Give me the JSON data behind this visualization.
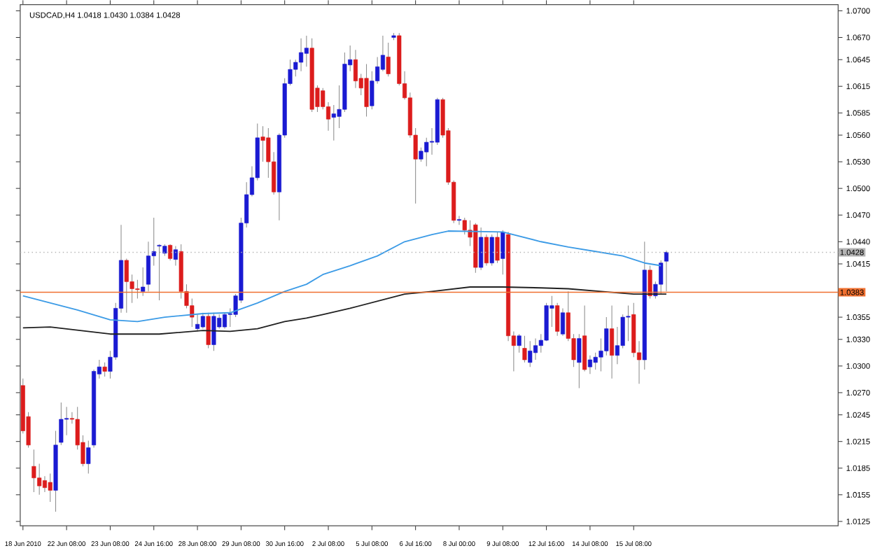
{
  "chart_data": {
    "type": "candlestick",
    "title": "USDCAD,H4 1.0418 1.0430 1.0384 1.0428",
    "categories": [
      "18 Jun 2010",
      null,
      null,
      null,
      null,
      null,
      null,
      null,
      "22 Jun 08:00",
      null,
      null,
      null,
      null,
      null,
      null,
      null,
      "23 Jun 08:00",
      null,
      null,
      null,
      null,
      null,
      null,
      null,
      "24 Jun 16:00",
      null,
      null,
      null,
      null,
      null,
      null,
      null,
      "28 Jun 08:00",
      null,
      null,
      null,
      null,
      null,
      null,
      null,
      "29 Jun 08:00",
      null,
      null,
      null,
      null,
      null,
      null,
      null,
      "30 Jun 16:00",
      null,
      null,
      null,
      null,
      null,
      null,
      null,
      "2 Jul 08:00",
      null,
      null,
      null,
      null,
      null,
      null,
      null,
      "5 Jul 08:00",
      null,
      null,
      null,
      null,
      null,
      null,
      null,
      "6 Jul 16:00",
      null,
      null,
      null,
      null,
      null,
      null,
      null,
      "8 Jul 00:00",
      null,
      null,
      null,
      null,
      null,
      null,
      null,
      "9 Jul 08:00",
      null,
      null,
      null,
      null,
      null,
      null,
      null,
      "12 Jul 16:00",
      null,
      null,
      null,
      null,
      null,
      null,
      null,
      "14 Jul 08:00",
      null,
      null,
      null,
      null,
      null,
      null,
      null,
      "15 Jul 08:00",
      null,
      null,
      null,
      null,
      null,
      null,
      null,
      null,
      null,
      null,
      null,
      null,
      null,
      null,
      null,
      null,
      null,
      null,
      null,
      null,
      null,
      null,
      null,
      null,
      null,
      null,
      null,
      null,
      null,
      null,
      null,
      null,
      null,
      null,
      null,
      null,
      null
    ],
    "ohlc": [
      [
        1.0278,
        1.0286,
        1.0224,
        1.0227
      ],
      [
        1.0243,
        1.0248,
        1.0208,
        1.0211
      ],
      [
        1.0187,
        1.0206,
        1.0158,
        1.0174
      ],
      [
        1.0174,
        1.019,
        1.0155,
        1.0165
      ],
      [
        1.0171,
        1.0176,
        1.0158,
        1.0163
      ],
      [
        1.0169,
        1.0179,
        1.0147,
        1.016
      ],
      [
        1.016,
        1.0227,
        1.0136,
        1.0211
      ],
      [
        1.0214,
        1.0259,
        1.0211,
        1.024
      ],
      [
        1.024,
        1.0254,
        1.0222,
        1.0241
      ],
      [
        1.0241,
        1.0248,
        1.0235,
        1.024
      ],
      [
        1.024,
        1.0254,
        1.0206,
        1.0211
      ],
      [
        1.0214,
        1.0222,
        1.0187,
        1.019
      ],
      [
        1.019,
        1.0216,
        1.0179,
        1.0208
      ],
      [
        1.0211,
        1.0296,
        1.0208,
        1.0294
      ],
      [
        1.0291,
        1.0307,
        1.0286,
        1.0299
      ],
      [
        1.0299,
        1.0304,
        1.0288,
        1.0294
      ],
      [
        1.0294,
        1.0317,
        1.0286,
        1.031
      ],
      [
        1.031,
        1.0371,
        1.0307,
        1.0365
      ],
      [
        1.0365,
        1.0459,
        1.036,
        1.0419
      ],
      [
        1.0419,
        1.0421,
        1.036,
        1.0395
      ],
      [
        1.0395,
        1.0403,
        1.0371,
        1.0387
      ],
      [
        1.0387,
        1.0397,
        1.0376,
        1.0386
      ],
      [
        1.0384,
        1.0411,
        1.0379,
        1.0389
      ],
      [
        1.0392,
        1.044,
        1.0384,
        1.0424
      ],
      [
        1.0424,
        1.0467,
        1.0413,
        1.0429
      ],
      [
        1.0435,
        1.0437,
        1.0374,
        1.0436
      ],
      [
        1.0427,
        1.0437,
        1.0424,
        1.0435
      ],
      [
        1.0436,
        1.0437,
        1.0419,
        1.0421
      ],
      [
        1.042,
        1.0435,
        1.0413,
        1.0431
      ],
      [
        1.0429,
        1.0437,
        1.0376,
        1.0384
      ],
      [
        1.0384,
        1.0392,
        1.0365,
        1.0368
      ],
      [
        1.0368,
        1.0376,
        1.0344,
        1.0355
      ],
      [
        1.0342,
        1.0358,
        1.0339,
        1.0347
      ],
      [
        1.0344,
        1.036,
        1.0342,
        1.0356
      ],
      [
        1.0356,
        1.036,
        1.032,
        1.0324
      ],
      [
        1.0324,
        1.036,
        1.0317,
        1.0356
      ],
      [
        1.0344,
        1.0358,
        1.0342,
        1.0354
      ],
      [
        1.0344,
        1.036,
        1.0342,
        1.0358
      ],
      [
        1.0358,
        1.0365,
        1.0344,
        1.0359
      ],
      [
        1.0358,
        1.0381,
        1.0355,
        1.0379
      ],
      [
        1.0374,
        1.0467,
        1.0371,
        1.0461
      ],
      [
        1.0461,
        1.0507,
        1.0456,
        1.0493
      ],
      [
        1.0493,
        1.0525,
        1.0491,
        1.0512
      ],
      [
        1.0512,
        1.0573,
        1.0509,
        1.0557
      ],
      [
        1.0558,
        1.057,
        1.053,
        1.0554
      ],
      [
        1.0557,
        1.0568,
        1.0512,
        1.053
      ],
      [
        1.053,
        1.0541,
        1.0493,
        1.0496
      ],
      [
        1.0496,
        1.0562,
        1.0464,
        1.056
      ],
      [
        1.056,
        1.0624,
        1.0557,
        1.0618
      ],
      [
        1.0618,
        1.0645,
        1.0616,
        1.0634
      ],
      [
        1.0634,
        1.0645,
        1.0626,
        1.0642
      ],
      [
        1.0642,
        1.0669,
        1.0632,
        1.0653
      ],
      [
        1.0652,
        1.0672,
        1.0637,
        1.0658
      ],
      [
        1.0658,
        1.0669,
        1.0586,
        1.0589
      ],
      [
        1.0613,
        1.0616,
        1.0586,
        1.0592
      ],
      [
        1.061,
        1.0613,
        1.0589,
        1.0592
      ],
      [
        1.0592,
        1.0597,
        1.0565,
        1.0578
      ],
      [
        1.058,
        1.0594,
        1.0554,
        1.0584
      ],
      [
        1.0581,
        1.0616,
        1.0568,
        1.0589
      ],
      [
        1.0589,
        1.0653,
        1.0586,
        1.064
      ],
      [
        1.0639,
        1.0661,
        1.0632,
        1.0645
      ],
      [
        1.0645,
        1.0656,
        1.0613,
        1.0621
      ],
      [
        1.0624,
        1.0629,
        1.0605,
        1.0613
      ],
      [
        1.0624,
        1.064,
        1.0581,
        1.0592
      ],
      [
        1.0593,
        1.0632,
        1.0589,
        1.0621
      ],
      [
        1.0621,
        1.0648,
        1.0618,
        1.0637
      ],
      [
        1.0634,
        1.0672,
        1.0632,
        1.065
      ],
      [
        1.0648,
        1.0664,
        1.0626,
        1.0629
      ],
      [
        1.067,
        1.0675,
        1.0667,
        1.0672
      ],
      [
        1.0672,
        1.0675,
        1.0616,
        1.0618
      ],
      [
        1.0618,
        1.0632,
        1.06,
        1.0602
      ],
      [
        1.0602,
        1.0608,
        1.0557,
        1.056
      ],
      [
        1.056,
        1.0568,
        1.0483,
        1.0533
      ],
      [
        1.0533,
        1.0546,
        1.053,
        1.0542
      ],
      [
        1.0541,
        1.0557,
        1.0525,
        1.0552
      ],
      [
        1.0552,
        1.0568,
        1.0538,
        1.0553
      ],
      [
        1.0552,
        1.0602,
        1.0549,
        1.06
      ],
      [
        1.06,
        1.0602,
        1.0557,
        1.056
      ],
      [
        1.0565,
        1.0568,
        1.0504,
        1.0507
      ],
      [
        1.0507,
        1.0509,
        1.0461,
        1.0464
      ],
      [
        1.0464,
        1.0469,
        1.0459,
        1.0465
      ],
      [
        1.0464,
        1.0467,
        1.0448,
        1.0453
      ],
      [
        1.0453,
        1.0464,
        1.0435,
        1.0445
      ],
      [
        1.0459,
        1.0461,
        1.0405,
        1.0411
      ],
      [
        1.0411,
        1.0456,
        1.0408,
        1.0445
      ],
      [
        1.0445,
        1.0448,
        1.0413,
        1.0416
      ],
      [
        1.0416,
        1.0448,
        1.0413,
        1.0445
      ],
      [
        1.0445,
        1.0451,
        1.0416,
        1.0419
      ],
      [
        1.0421,
        1.0453,
        1.0403,
        1.0451
      ],
      [
        1.0448,
        1.0451,
        1.0328,
        1.0334
      ],
      [
        1.0334,
        1.0339,
        1.0294,
        1.0323
      ],
      [
        1.0323,
        1.0336,
        1.0315,
        1.0334
      ],
      [
        1.032,
        1.0334,
        1.0304,
        1.0307
      ],
      [
        1.0304,
        1.0328,
        1.0299,
        1.0317
      ],
      [
        1.0315,
        1.0331,
        1.0307,
        1.0323
      ],
      [
        1.0323,
        1.0336,
        1.0315,
        1.0329
      ],
      [
        1.0329,
        1.0371,
        1.0328,
        1.0368
      ],
      [
        1.0365,
        1.0379,
        1.0344,
        1.0368
      ],
      [
        1.0368,
        1.0371,
        1.0334,
        1.0339
      ],
      [
        1.0336,
        1.0365,
        1.0334,
        1.036
      ],
      [
        1.036,
        1.0384,
        1.0328,
        1.0331
      ],
      [
        1.0331,
        1.0336,
        1.0299,
        1.0307
      ],
      [
        1.0304,
        1.0336,
        1.0275,
        1.0331
      ],
      [
        1.0334,
        1.0368,
        1.0294,
        1.0296
      ],
      [
        1.0299,
        1.0312,
        1.0291,
        1.0307
      ],
      [
        1.0304,
        1.0315,
        1.0296,
        1.031
      ],
      [
        1.031,
        1.0331,
        1.0294,
        1.0317
      ],
      [
        1.0317,
        1.0355,
        1.0312,
        1.0342
      ],
      [
        1.0342,
        1.0368,
        1.0286,
        1.0312
      ],
      [
        1.0312,
        1.0344,
        1.0302,
        1.0323
      ],
      [
        1.0323,
        1.0358,
        1.032,
        1.0355
      ],
      [
        1.0355,
        1.0368,
        1.0328,
        1.0356
      ],
      [
        1.0358,
        1.0371,
        1.031,
        1.0315
      ],
      [
        1.0315,
        1.0328,
        1.028,
        1.0307
      ],
      [
        1.0307,
        1.044,
        1.0296,
        1.0408
      ],
      [
        1.0408,
        1.0413,
        1.0376,
        1.0379
      ],
      [
        1.0379,
        1.0395,
        1.0376,
        1.0392
      ],
      [
        1.0392,
        1.0419,
        1.0381,
        1.0416
      ],
      [
        1.0418,
        1.043,
        1.0384,
        1.0428
      ],
      null,
      null,
      null,
      null,
      null,
      null,
      null,
      null,
      null,
      null,
      null,
      null,
      null,
      null,
      null,
      null,
      null,
      null,
      null,
      null,
      null,
      null,
      null,
      null,
      null,
      null,
      null,
      null,
      null,
      null,
      null
    ],
    "series": [
      {
        "type": "line",
        "color": "#3c9be6",
        "values": [
          1.0379,
          null,
          null,
          null,
          null,
          1.0371,
          null,
          null,
          null,
          null,
          1.0363,
          null,
          null,
          null,
          null,
          null,
          1.0352,
          null,
          null,
          null,
          null,
          1.035,
          null,
          null,
          null,
          null,
          1.0355,
          null,
          null,
          null,
          null,
          null,
          null,
          1.0359,
          null,
          null,
          null,
          null,
          1.036,
          null,
          null,
          null,
          null,
          1.0371,
          null,
          null,
          null,
          null,
          1.0384,
          null,
          null,
          null,
          1.0392,
          null,
          null,
          1.0403,
          null,
          null,
          null,
          null,
          1.0413,
          null,
          null,
          null,
          null,
          1.0424,
          null,
          null,
          null,
          null,
          1.044,
          null,
          null,
          null,
          null,
          1.0448,
          null,
          null,
          1.0452,
          null,
          null,
          null,
          null,
          null,
          null,
          null,
          null,
          null,
          1.0451,
          null,
          null,
          null,
          null,
          null,
          null,
          1.044,
          null,
          null,
          null,
          null,
          1.0434,
          null,
          null,
          null,
          null,
          1.0429,
          null,
          null,
          null,
          null,
          1.0424,
          null,
          null,
          null,
          1.0416,
          null,
          null,
          1.0413,
          null,
          null,
          null,
          null,
          null,
          null,
          null,
          null,
          null,
          null,
          null,
          null,
          null,
          null,
          null,
          null,
          null,
          null,
          null,
          null,
          null,
          null,
          null,
          null,
          null,
          null,
          null,
          null,
          null,
          null,
          null,
          null
        ]
      },
      {
        "type": "line",
        "color": "#202020",
        "values": [
          1.0343,
          null,
          null,
          null,
          null,
          1.0344,
          null,
          null,
          null,
          null,
          null,
          null,
          null,
          null,
          null,
          null,
          1.0336,
          null,
          null,
          null,
          null,
          null,
          null,
          null,
          null,
          1.0336,
          null,
          null,
          null,
          null,
          null,
          null,
          null,
          1.034,
          null,
          null,
          null,
          null,
          1.0339,
          null,
          null,
          null,
          null,
          1.0342,
          null,
          null,
          null,
          null,
          1.035,
          null,
          null,
          null,
          1.0354,
          null,
          null,
          1.0358,
          null,
          null,
          null,
          null,
          1.0365,
          null,
          null,
          null,
          null,
          null,
          null,
          null,
          null,
          null,
          1.0381,
          null,
          null,
          null,
          null,
          1.0384,
          null,
          null,
          null,
          null,
          null,
          null,
          1.0389,
          null,
          null,
          null,
          null,
          null,
          1.0389,
          null,
          null,
          null,
          null,
          null,
          null,
          1.0388,
          null,
          null,
          null,
          null,
          1.0387,
          null,
          null,
          null,
          null,
          null,
          null,
          null,
          1.0383,
          null,
          null,
          null,
          1.0381,
          null,
          null,
          null,
          null,
          null,
          1.0381,
          null,
          null,
          null,
          null,
          null,
          null,
          null,
          null,
          null,
          null,
          null,
          null,
          null,
          null,
          null,
          null,
          null,
          null,
          null,
          null,
          null,
          null,
          null,
          null,
          null,
          null,
          null,
          null,
          null,
          null,
          null
        ]
      }
    ],
    "ref_lines": [
      {
        "axis": "y",
        "value": 1.0428,
        "label": "1.0428",
        "color": "#b4b4b4",
        "line_style": "dotted"
      },
      {
        "axis": "y",
        "value": 1.0383,
        "label": "1.0383",
        "color": "#f07030",
        "line_style": "solid"
      }
    ],
    "ylim": [
      1.012,
      1.0707
    ],
    "yticks": [
      {
        "value": 1.07,
        "label": "1.0700"
      },
      {
        "value": 1.067,
        "label": "1.0670"
      },
      1.0645,
      1.0615,
      1.0585,
      {
        "value": 1.056,
        "label": "1.0560"
      },
      {
        "value": 1.053,
        "label": "1.0530"
      },
      {
        "value": 1.05,
        "label": "1.0500"
      },
      {
        "value": 1.047,
        "label": "1.0470"
      },
      {
        "value": 1.044,
        "label": "1.0440"
      },
      1.0415,
      {
        "value": 1.0385,
        "label": null
      },
      1.0355,
      {
        "value": 1.033,
        "label": "1.0330"
      },
      {
        "value": 1.03,
        "label": "1.0300"
      },
      {
        "value": 1.027,
        "label": "1.0270"
      },
      1.0245,
      1.0215,
      1.0185,
      1.0155,
      1.0125
    ]
  }
}
